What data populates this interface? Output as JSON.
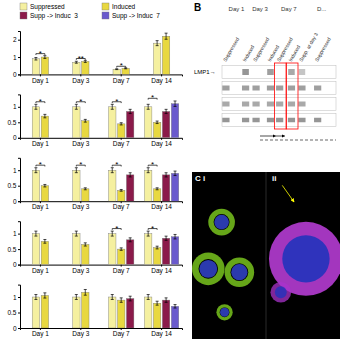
{
  "chart_data": [
    {
      "type": "bar",
      "categories": [
        "Day 1",
        "Day 3",
        "Day 7",
        "Day 14"
      ],
      "series": [
        {
          "name": "Suppressed",
          "color": "#f5f0a0",
          "values": [
            0.9,
            0.7,
            0.3,
            1.8
          ],
          "errors": [
            0.072,
            0.056,
            0.024,
            0.144
          ]
        },
        {
          "name": "Induced",
          "color": "#e8d840",
          "values": [
            1.0,
            0.75,
            0.35,
            2.2
          ],
          "errors": [
            0.08,
            0.06,
            0.028,
            0.176
          ]
        },
        {
          "name": "Supp -> Induc  3",
          "color": "#8b1a4a",
          "values": [
            null,
            null,
            null,
            null
          ],
          "errors": [
            null,
            null,
            null,
            null
          ]
        },
        {
          "name": "Supp -> Induc  7",
          "color": "#6a5acd",
          "values": [
            null,
            null,
            null,
            null
          ],
          "errors": [
            null,
            null,
            null,
            null
          ]
        }
      ],
      "annotations": [
        "*",
        "**",
        "*",
        null
      ],
      "ylim": [
        0,
        2.5
      ],
      "yticks": [
        0,
        1,
        2
      ],
      "grid": false,
      "legend": "top"
    },
    {
      "type": "bar",
      "categories": [
        "Day 1",
        "Day 3",
        "Day 7",
        "Day 14"
      ],
      "series": [
        {
          "name": "Suppressed",
          "color": "#f5f0a0",
          "values": [
            1.0,
            1.0,
            1.0,
            1.0
          ],
          "errors": [
            0.08,
            0.08,
            0.08,
            0.08
          ]
        },
        {
          "name": "Induced",
          "color": "#e8d840",
          "values": [
            0.7,
            0.55,
            0.45,
            0.5
          ],
          "errors": [
            0.056,
            0.044,
            0.036,
            0.04
          ]
        },
        {
          "name": "Supp -> Induc  3",
          "color": "#8b1a4a",
          "values": [
            null,
            null,
            0.85,
            0.85
          ],
          "errors": [
            null,
            null,
            0.068,
            0.068
          ]
        },
        {
          "name": "Supp -> Induc  7",
          "color": "#6a5acd",
          "values": [
            null,
            null,
            null,
            1.1
          ],
          "errors": [
            null,
            null,
            null,
            0.088
          ]
        }
      ],
      "annotations": [
        "*",
        "*",
        "*",
        "*"
      ],
      "ylim": [
        0,
        1.4
      ],
      "yticks": [
        0,
        0.5,
        1
      ],
      "grid": false
    },
    {
      "type": "bar",
      "categories": [
        "Day 1",
        "Day 3",
        "Day 7",
        "Day 14"
      ],
      "series": [
        {
          "name": "Suppressed",
          "color": "#f5f0a0",
          "values": [
            1.0,
            1.0,
            1.0,
            1.0
          ],
          "errors": [
            0.08,
            0.08,
            0.08,
            0.08
          ]
        },
        {
          "name": "Induced",
          "color": "#e8d840",
          "values": [
            0.5,
            0.4,
            0.35,
            0.4
          ],
          "errors": [
            0.04,
            0.032,
            0.028,
            0.032
          ]
        },
        {
          "name": "Supp -> Induc  3",
          "color": "#8b1a4a",
          "values": [
            null,
            null,
            0.85,
            0.85
          ],
          "errors": [
            null,
            null,
            0.068,
            0.068
          ]
        },
        {
          "name": "Supp -> Induc  7",
          "color": "#6a5acd",
          "values": [
            null,
            null,
            null,
            0.9
          ],
          "errors": [
            null,
            null,
            null,
            0.072
          ]
        }
      ],
      "annotations": [
        "*",
        "*",
        "*",
        "*"
      ],
      "ylim": [
        0,
        1.4
      ],
      "yticks": [
        0,
        0.5,
        1
      ],
      "grid": false
    },
    {
      "type": "bar",
      "categories": [
        "Day 1",
        "Day 3",
        "Day 7",
        "Day 14"
      ],
      "series": [
        {
          "name": "Suppressed",
          "color": "#f5f0a0",
          "values": [
            1.0,
            1.0,
            1.0,
            1.0
          ],
          "errors": [
            0.08,
            0.08,
            0.08,
            0.08
          ]
        },
        {
          "name": "Induced",
          "color": "#e8d840",
          "values": [
            0.75,
            0.65,
            0.5,
            0.55
          ],
          "errors": [
            0.06,
            0.052,
            0.04,
            0.044
          ]
        },
        {
          "name": "Supp -> Induc  3",
          "color": "#8b1a4a",
          "values": [
            null,
            null,
            0.8,
            0.85
          ],
          "errors": [
            null,
            null,
            0.064,
            0.068
          ]
        },
        {
          "name": "Supp -> Induc  7",
          "color": "#6a5acd",
          "values": [
            null,
            null,
            null,
            0.9
          ],
          "errors": [
            null,
            null,
            null,
            0.072
          ]
        }
      ],
      "annotations": [
        null,
        null,
        "*",
        "*"
      ],
      "ylim": [
        0,
        1.4
      ],
      "yticks": [
        0,
        0.5,
        1
      ],
      "grid": false
    },
    {
      "type": "bar",
      "categories": [
        "Day 1",
        "Day 3",
        "Day 7",
        "Day 14"
      ],
      "series": [
        {
          "name": "Suppressed",
          "color": "#f5f0a0",
          "values": [
            1.0,
            1.0,
            1.0,
            1.0
          ],
          "errors": [
            0.08,
            0.08,
            0.08,
            0.08
          ]
        },
        {
          "name": "Induced",
          "color": "#e8d840",
          "values": [
            1.05,
            1.15,
            0.9,
            0.8
          ],
          "errors": [
            0.084,
            0.092,
            0.072,
            0.064
          ]
        },
        {
          "name": "Supp -> Induc  3",
          "color": "#8b1a4a",
          "values": [
            null,
            null,
            0.95,
            0.9
          ],
          "errors": [
            null,
            null,
            0.076,
            0.072
          ]
        },
        {
          "name": "Supp -> Induc  7",
          "color": "#6a5acd",
          "values": [
            null,
            null,
            null,
            0.7
          ],
          "errors": [
            null,
            null,
            null,
            0.056
          ]
        }
      ],
      "ylim": [
        0,
        1.4
      ],
      "yticks": [
        0,
        0.5,
        1
      ],
      "grid": false
    },
    {
      "type": "blot",
      "title": "B",
      "categories": [
        "Day 1",
        "Day 3",
        "Day 7",
        "D..."
      ],
      "annotations": [
        "Suppressed",
        "Induced",
        "Suppressed",
        "Induced",
        "Suppressed",
        "Induced",
        "Supp. at day 3",
        "Suppressed"
      ],
      "ylabel": "LMP1→"
    },
    {
      "type": "micrograph",
      "annotations": [
        "C i",
        "ii"
      ]
    }
  ]
}
